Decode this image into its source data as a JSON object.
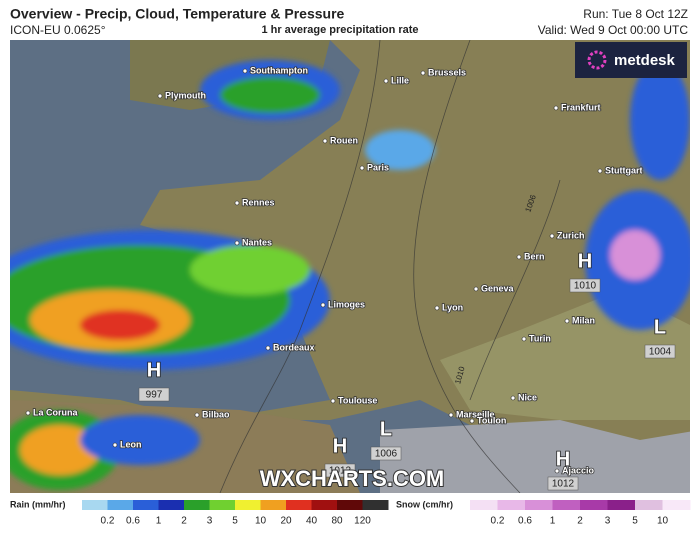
{
  "header": {
    "title": "Overview - Precip, Cloud, Temperature & Pressure",
    "model": "ICON-EU 0.0625°",
    "subtitle": "1 hr average precipitation rate",
    "run": "Run: Tue 8 Oct 12Z",
    "valid": "Valid: Wed 9 Oct 00:00 UTC"
  },
  "logo": "metdesk",
  "watermark": "WXCHARTS.COM",
  "cities": [
    "Southampton",
    "Plymouth",
    "Lille",
    "Brussels",
    "Frankfurt",
    "Rouen",
    "Paris",
    "Stuttgart",
    "Rennes",
    "Nantes",
    "Zurich",
    "Bern",
    "Geneva",
    "Limoges",
    "Lyon",
    "Milan",
    "Turin",
    "Bordeaux",
    "Toulouse",
    "Nice",
    "Marseille",
    "Toulon",
    "Bilbao",
    "La Coruna",
    "Leon",
    "Ajaccio"
  ],
  "pressure_centers": [
    {
      "symbol": "H",
      "value": 997
    },
    {
      "symbol": "H",
      "value": 1010
    },
    {
      "symbol": "L",
      "value": 1004
    },
    {
      "symbol": "L",
      "value": 1006
    },
    {
      "symbol": "H",
      "value": 1012
    },
    {
      "symbol": "H",
      "value": 1012
    }
  ],
  "isobar_labels": [
    1006,
    1010
  ],
  "legend": {
    "rain": {
      "label": "Rain (mm/hr)",
      "ticks": [
        0.2,
        0.6,
        1,
        2,
        3,
        5,
        10,
        20,
        40,
        80,
        120
      ],
      "colors": [
        "#a8d8f0",
        "#5aa8e8",
        "#2a5fd8",
        "#1a2fb0",
        "#2aa02a",
        "#70d030",
        "#f0f030",
        "#f0a020",
        "#e03020",
        "#a01010",
        "#600808",
        "#303030"
      ]
    },
    "snow": {
      "label": "Snow (cm/hr)",
      "ticks": [
        0.2,
        0.6,
        1,
        2,
        3,
        5,
        10
      ],
      "colors": [
        "#f4e0f4",
        "#e8b8e8",
        "#d890d8",
        "#c060c0",
        "#a83aa8",
        "#8a208a",
        "#e0c0e0",
        "#f8e8f8"
      ]
    }
  }
}
